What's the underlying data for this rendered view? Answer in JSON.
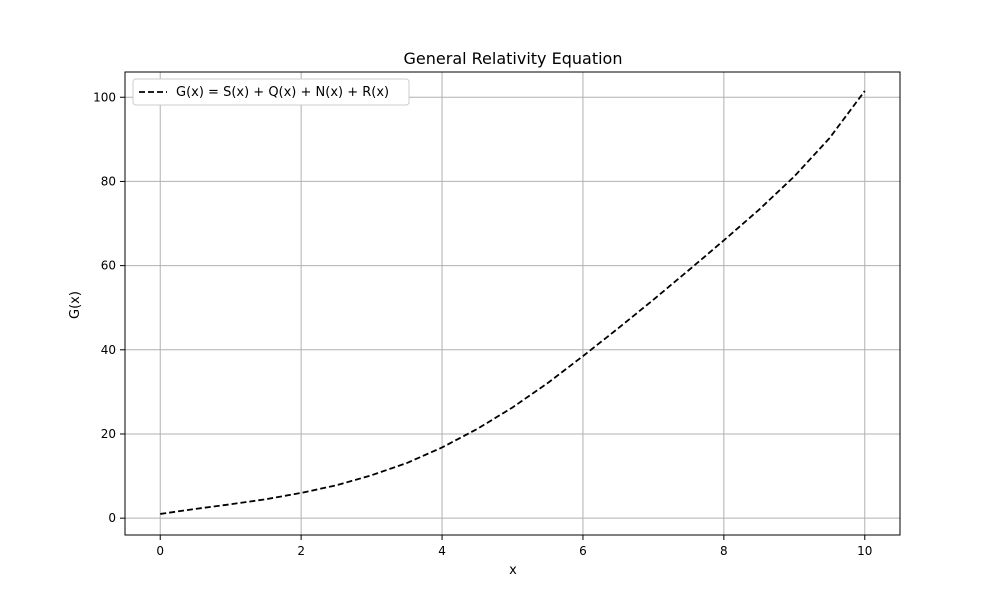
{
  "chart_data": {
    "type": "line",
    "title": "General Relativity Equation",
    "xlabel": "x",
    "ylabel": "G(x)",
    "xlim": [
      -0.5,
      10.5
    ],
    "ylim": [
      -4,
      106
    ],
    "x_ticks": [
      0,
      2,
      4,
      6,
      8,
      10
    ],
    "x_tick_labels": [
      "0",
      "2",
      "4",
      "6",
      "8",
      "10"
    ],
    "y_ticks": [
      0,
      20,
      40,
      60,
      80,
      100
    ],
    "y_tick_labels": [
      "0",
      "20",
      "40",
      "60",
      "80",
      "100"
    ],
    "grid": true,
    "legend": {
      "position": "top-left",
      "entries": [
        "G(x) = S(x) + Q(x) + N(x) + R(x)"
      ]
    },
    "series": [
      {
        "name": "G(x) = S(x) + Q(x) + N(x) + R(x)",
        "color": "#000000",
        "line_style": "dashed",
        "x": [
          0,
          0.5,
          1,
          1.5,
          2,
          2.5,
          3,
          3.5,
          4,
          4.5,
          5,
          5.5,
          6,
          6.5,
          7,
          7.5,
          8,
          8.5,
          9,
          9.5,
          10
        ],
        "y": [
          1.0,
          2.2,
          3.3,
          4.5,
          6.0,
          7.8,
          10.2,
          13.1,
          16.8,
          21.2,
          26.3,
          32.1,
          38.5,
          45.1,
          51.9,
          58.9,
          66.0,
          73.3,
          81.2,
          90.3,
          101.5
        ]
      }
    ]
  },
  "colors": {
    "background": "#ffffff",
    "axes": "#000000",
    "grid": "#b0b0b0",
    "legend_border": "#cccccc"
  }
}
